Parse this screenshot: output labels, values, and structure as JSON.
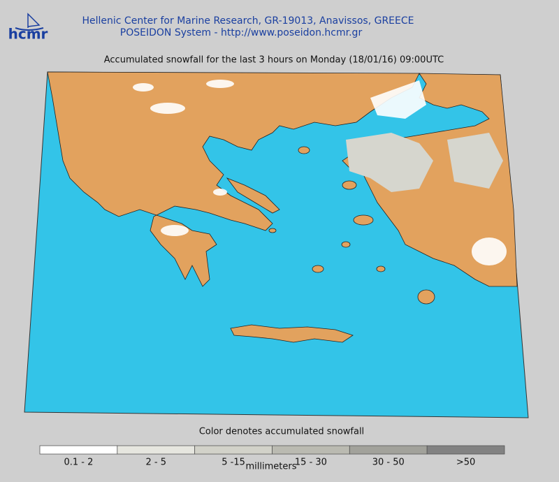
{
  "header": {
    "logo": "hcmr",
    "line1": "Hellenic Center for Marine Research, GR-19013, Anavissos, GREECE",
    "line2": "POSEIDON System - http://www.poseidon.hcmr.gr"
  },
  "title": "Accumulated snowfall for the last 3 hours on Monday (18/01/16) 09:00UTC",
  "legend": {
    "title": "Color denotes accumulated snowfall",
    "unit": "millimeters",
    "items": [
      {
        "label": "0.1 - 2",
        "color": "#ffffff"
      },
      {
        "label": "2 - 5",
        "color": "#e6e6df"
      },
      {
        "label": "5 -15",
        "color": "#d2d2c9"
      },
      {
        "label": "15 - 30",
        "color": "#babab1"
      },
      {
        "label": "30 - 50",
        "color": "#a2a29b"
      },
      {
        "label": ">50",
        "color": "#828282"
      }
    ]
  }
}
